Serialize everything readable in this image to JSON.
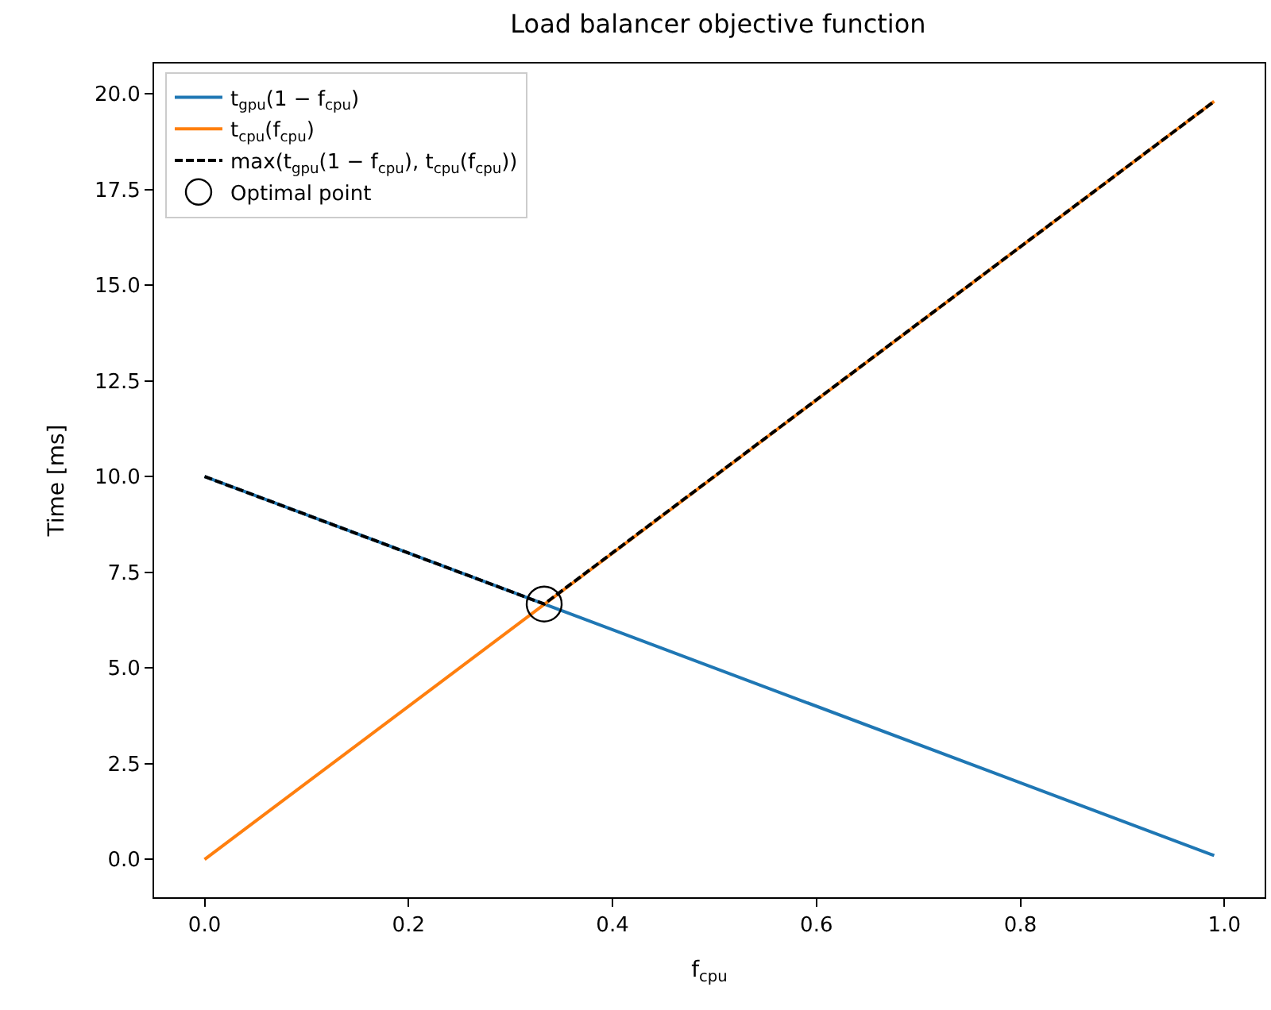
{
  "chart_data": {
    "type": "line",
    "title": "Load balancer objective function",
    "xlabel": "f$_{cpu}$",
    "ylabel": "Time [ms]",
    "xlim": [
      -0.0495,
      1.0395
    ],
    "xticks": [
      {
        "value": 0,
        "label": "0.0"
      },
      0.2,
      0.4,
      0.6,
      0.8,
      {
        "value": 1,
        "label": "1.0"
      }
    ],
    "ylim": [
      -0.99,
      20.79
    ],
    "yticks": [
      {
        "value": 0,
        "label": "0.0"
      },
      2.5,
      {
        "value": 5,
        "label": "5.0"
      },
      7.5,
      {
        "value": 10,
        "label": "10.0"
      },
      12.5,
      {
        "value": 15,
        "label": "15.0"
      },
      17.5,
      {
        "value": 20,
        "label": "20.0"
      }
    ],
    "legend": "top left",
    "series": [
      {
        "name": "t$_{gpu}$(1 − f$_{cpu}$)",
        "color": "#1f77b4",
        "marker": "none",
        "line_style": "solid",
        "x": [
          0,
          0.99
        ],
        "values": [
          10,
          0.1
        ]
      },
      {
        "name": "t$_{cpu}$(f$_{cpu}$)",
        "color": "#ff7f0e",
        "marker": "none",
        "line_style": "solid",
        "x": [
          0,
          0.99
        ],
        "values": [
          0,
          19.8
        ]
      },
      {
        "name": "max(t$_{gpu}$(1 − f$_{cpu}$), t$_{cpu}$(f$_{cpu}$))",
        "color": "#000000",
        "marker": "none",
        "line_style": "dashed",
        "x": [
          0,
          0.333,
          0.99
        ],
        "values": [
          10,
          6.67,
          19.8
        ]
      },
      {
        "name": "Optimal point",
        "color": "#000000",
        "type": "scatter",
        "marker": "circle",
        "x": [
          0.333
        ],
        "values": [
          6.67
        ]
      }
    ]
  }
}
